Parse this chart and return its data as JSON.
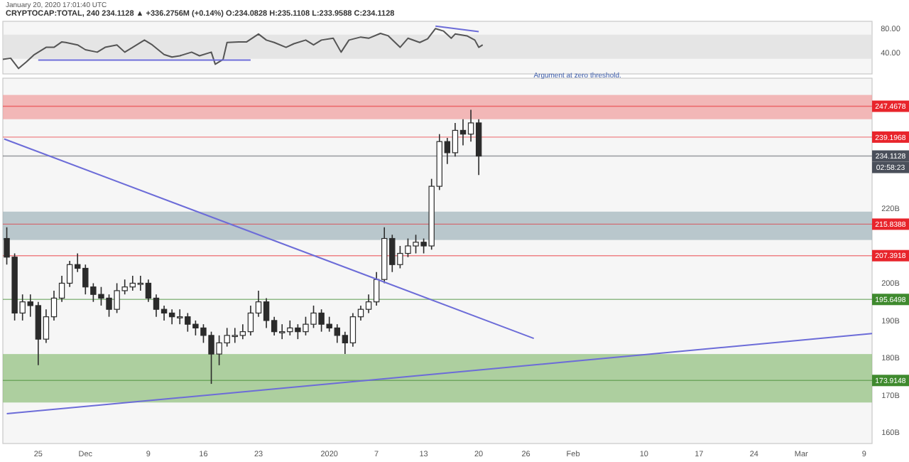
{
  "chart_data": [
    {
      "type": "line",
      "title": "CRYPTOCAP:TOTAL, 240  234.1128 ▲ +336.2756M (+0.14%)  O:234.0828 H:235.1108 L:233.9588 C:234.1128",
      "annotations": [
        "January 20, 2020 17:01:40 UTC"
      ],
      "xlim": [
        "2019-11-20T12:00",
        "2020-03-10"
      ],
      "ylim": [
        5,
        92
      ],
      "yticks": [
        {
          "value": 80,
          "label": "80.00"
        },
        {
          "value": 40,
          "label": "40.00"
        }
      ],
      "tick_labels": "y",
      "bands": [
        {
          "axis": "y",
          "from": 30,
          "to": 70,
          "color": "#dedede"
        }
      ],
      "series": [
        {
          "color": "#555555",
          "x": [
            "2019-11-20T12:00",
            "2019-11-21T12:00",
            "2019-11-22T12:00",
            "2019-11-23T12:00",
            "2019-11-24T12:00",
            "2019-11-26",
            "2019-11-27",
            "2019-11-28",
            "2019-11-28T12:00",
            "2019-11-30",
            "2019-12-01",
            "2019-12-02T12:00",
            "2019-12-03T12:00",
            "2019-12-05",
            "2019-12-06",
            "2019-12-07",
            "2019-12-08T12:00",
            "2019-12-09T12:00",
            "2019-12-11",
            "2019-12-12",
            "2019-12-13",
            "2019-12-14T12:00",
            "2019-12-15T12:00",
            "2019-12-17",
            "2019-12-17T12:00",
            "2019-12-18T12:00",
            "2019-12-19",
            "2019-12-20T12:00",
            "2019-12-21T12:00",
            "2019-12-23",
            "2019-12-24",
            "2019-12-25",
            "2019-12-26T12:00",
            "2019-12-27T12:00",
            "2019-12-29",
            "2019-12-30",
            "2019-12-31",
            "2020-01-01T12:00",
            "2020-01-02T12:00",
            "2020-01-03T12:00",
            "2020-01-05",
            "2020-01-06",
            "2020-01-07T12:00",
            "2020-01-08T12:00",
            "2020-01-10",
            "2020-01-11",
            "2020-01-12T12:00",
            "2020-01-13T12:00",
            "2020-01-14T12:00",
            "2020-01-15T12:00",
            "2020-01-16T12:00",
            "2020-01-17",
            "2020-01-18T12:00",
            "2020-01-19T12:00",
            "2020-01-20",
            "2020-01-20T12:00"
          ],
          "values": [
            29,
            31,
            14,
            25,
            37,
            49,
            49,
            58,
            57,
            53,
            45,
            41,
            49,
            53,
            41,
            49,
            61,
            53,
            37,
            33,
            35,
            41,
            35,
            41,
            21,
            29,
            57,
            58,
            58,
            71,
            61,
            57,
            49,
            55,
            61,
            53,
            61,
            64,
            41,
            61,
            66,
            64,
            72,
            68,
            49,
            64,
            57,
            63,
            80,
            76,
            64,
            71,
            68,
            61,
            49,
            53
          ]
        },
        {
          "color": "#6c6cd8",
          "x": [
            "2019-11-25",
            "2019-12-22"
          ],
          "values": [
            28,
            28
          ]
        },
        {
          "color": "#6c6cd8",
          "x": [
            "2020-01-14T12:00",
            "2020-01-20"
          ],
          "values": [
            84,
            75
          ]
        }
      ]
    },
    {
      "type": "candlestick",
      "annotations": [
        "Argument at zero threshold.",
        {
          "text": "02:58:23",
          "y": 234.1128
        }
      ],
      "xlim": [
        "2019-11-20T12:00",
        "2020-03-10"
      ],
      "ylim": [
        157,
        255
      ],
      "yticks": [
        {
          "value": 160,
          "label": "160B"
        },
        {
          "value": 170,
          "label": "170B"
        },
        {
          "value": 180,
          "label": "180B"
        },
        {
          "value": 190,
          "label": "190B"
        },
        {
          "value": 200,
          "label": "200B"
        },
        {
          "value": 220,
          "label": "220B"
        }
      ],
      "xticks": [
        {
          "value": "2019-11-25",
          "label": "25"
        },
        {
          "value": "2019-12-01",
          "label": "Dec"
        },
        {
          "value": "2019-12-09",
          "label": "9"
        },
        {
          "value": "2019-12-16",
          "label": "16"
        },
        {
          "value": "2019-12-23",
          "label": "23"
        },
        {
          "value": "2020-01-01",
          "label": "2020"
        },
        {
          "value": "2020-01-07",
          "label": "7"
        },
        {
          "value": "2020-01-13",
          "label": "13"
        },
        {
          "value": "2020-01-20",
          "label": "20"
        },
        {
          "value": "2020-01-26",
          "label": "26"
        },
        {
          "value": "2020-02-01",
          "label": "Feb"
        },
        {
          "value": "2020-02-10",
          "label": "10"
        },
        {
          "value": "2020-02-17",
          "label": "17"
        },
        {
          "value": "2020-02-24",
          "label": "24"
        },
        {
          "value": "2020-03-01",
          "label": "Mar"
        },
        {
          "value": "2020-03-09",
          "label": "9"
        }
      ],
      "bands": [
        {
          "axis": "y",
          "from": 244,
          "to": 250.5,
          "color": "#f19c9c"
        },
        {
          "axis": "y",
          "from": 211.6,
          "to": 219.2,
          "color": "#9fb4bb"
        },
        {
          "axis": "y",
          "from": 168,
          "to": 181,
          "color": "#8fbf7a"
        }
      ],
      "ref_lines": [
        {
          "axis": "y",
          "value": 247.4678,
          "label": "247.4678",
          "color": "#e8242b"
        },
        {
          "axis": "y",
          "value": 239.1968,
          "label": "239.1968",
          "color": "#e8242b"
        },
        {
          "axis": "y",
          "value": 234.1128,
          "label": "234.1128",
          "color": "#4a4f5a"
        },
        {
          "axis": "y",
          "value": 215.8388,
          "label": "215.8388",
          "color": "#e8242b"
        },
        {
          "axis": "y",
          "value": 207.3918,
          "label": "207.3918",
          "color": "#e8242b"
        },
        {
          "axis": "y",
          "value": 195.6498,
          "label": "195.6498",
          "color": "#3f8a2e"
        },
        {
          "axis": "y",
          "value": 173.9148,
          "label": "173.9148",
          "color": "#3f8a2e"
        }
      ],
      "series": [
        {
          "color": "#2b2b2b",
          "x": [
            "2019-11-21",
            "2019-11-22",
            "2019-11-23",
            "2019-11-24",
            "2019-11-25",
            "2019-11-26",
            "2019-11-27",
            "2019-11-28",
            "2019-11-29",
            "2019-11-30",
            "2019-12-01",
            "2019-12-02",
            "2019-12-03",
            "2019-12-04",
            "2019-12-05",
            "2019-12-06",
            "2019-12-07",
            "2019-12-08",
            "2019-12-09",
            "2019-12-10",
            "2019-12-11",
            "2019-12-12",
            "2019-12-13",
            "2019-12-14",
            "2019-12-15",
            "2019-12-16",
            "2019-12-17",
            "2019-12-18",
            "2019-12-19",
            "2019-12-20",
            "2019-12-21",
            "2019-12-22",
            "2019-12-23",
            "2019-12-24",
            "2019-12-25",
            "2019-12-26",
            "2019-12-27",
            "2019-12-28",
            "2019-12-29",
            "2019-12-30",
            "2019-12-31",
            "2020-01-01",
            "2020-01-02",
            "2020-01-03",
            "2020-01-04",
            "2020-01-05",
            "2020-01-06",
            "2020-01-07",
            "2020-01-08",
            "2020-01-09",
            "2020-01-10",
            "2020-01-11",
            "2020-01-12",
            "2020-01-13",
            "2020-01-14",
            "2020-01-15",
            "2020-01-16",
            "2020-01-17",
            "2020-01-18",
            "2020-01-19",
            "2020-01-20"
          ],
          "ohlc": [
            [
              212,
              215,
              205,
              207
            ],
            [
              207,
              208,
              190,
              192
            ],
            [
              192,
              197,
              190,
              195
            ],
            [
              195,
              197,
              191,
              194
            ],
            [
              194,
              195,
              178,
              185
            ],
            [
              185,
              193,
              184,
              191
            ],
            [
              191,
              198,
              190,
              196
            ],
            [
              196,
              202,
              195,
              200
            ],
            [
              200,
              206,
              199,
              205
            ],
            [
              205,
              208,
              203,
              204
            ],
            [
              204,
              205,
              197,
              199
            ],
            [
              199,
              200,
              195,
              197
            ],
            [
              197,
              199,
              194,
              196
            ],
            [
              196,
              197,
              191,
              193
            ],
            [
              193,
              200,
              192,
              198
            ],
            [
              198,
              201,
              197,
              199
            ],
            [
              199,
              202,
              198,
              200
            ],
            [
              200,
              202,
              198,
              200
            ],
            [
              200,
              201,
              195,
              196
            ],
            [
              196,
              197,
              191,
              193
            ],
            [
              193,
              194,
              190,
              192
            ],
            [
              192,
              193,
              189,
              191
            ],
            [
              191,
              193,
              189,
              191
            ],
            [
              191,
              192,
              187,
              189
            ],
            [
              189,
              190,
              186,
              188
            ],
            [
              188,
              189,
              184,
              186
            ],
            [
              186,
              187,
              173,
              181
            ],
            [
              181,
              186,
              178,
              184
            ],
            [
              184,
              188,
              183,
              186
            ],
            [
              186,
              188,
              184,
              186
            ],
            [
              186,
              189,
              185,
              187
            ],
            [
              187,
              194,
              186,
              192
            ],
            [
              192,
              198,
              191,
              195
            ],
            [
              195,
              196,
              188,
              190
            ],
            [
              190,
              191,
              186,
              187
            ],
            [
              187,
              189,
              185,
              187
            ],
            [
              187,
              190,
              186,
              188
            ],
            [
              188,
              189,
              185,
              187
            ],
            [
              187,
              191,
              186,
              189
            ],
            [
              189,
              194,
              188,
              192
            ],
            [
              192,
              193,
              187,
              189
            ],
            [
              189,
              191,
              187,
              188
            ],
            [
              188,
              189,
              184,
              186
            ],
            [
              186,
              187,
              181,
              184
            ],
            [
              184,
              192,
              183,
              191
            ],
            [
              191,
              194,
              190,
              193
            ],
            [
              193,
              197,
              192,
              195
            ],
            [
              195,
              203,
              194,
              201
            ],
            [
              201,
              215,
              200,
              212
            ],
            [
              212,
              213,
              203,
              205
            ],
            [
              205,
              210,
              204,
              208
            ],
            [
              208,
              212,
              207,
              210
            ],
            [
              210,
              213,
              208,
              211
            ],
            [
              211,
              212,
              208,
              210
            ],
            [
              210,
              228,
              209,
              226
            ],
            [
              226,
              240,
              225,
              238
            ],
            [
              238,
              239,
              232,
              235
            ],
            [
              235,
              243,
              234,
              241
            ],
            [
              241,
              244,
              237,
              240
            ],
            [
              240,
              246.5,
              238,
              243
            ],
            [
              243,
              244,
              229,
              234.1128
            ]
          ]
        },
        {
          "type": "line",
          "color": "#6c6cd8",
          "x": [
            "2019-11-20T16:00",
            "2020-01-27"
          ],
          "values": [
            238.7,
            185.2
          ]
        },
        {
          "type": "line",
          "color": "#6c6cd8",
          "x": [
            "2019-11-21",
            "2020-03-10"
          ],
          "values": [
            165,
            186.5
          ]
        }
      ]
    }
  ]
}
